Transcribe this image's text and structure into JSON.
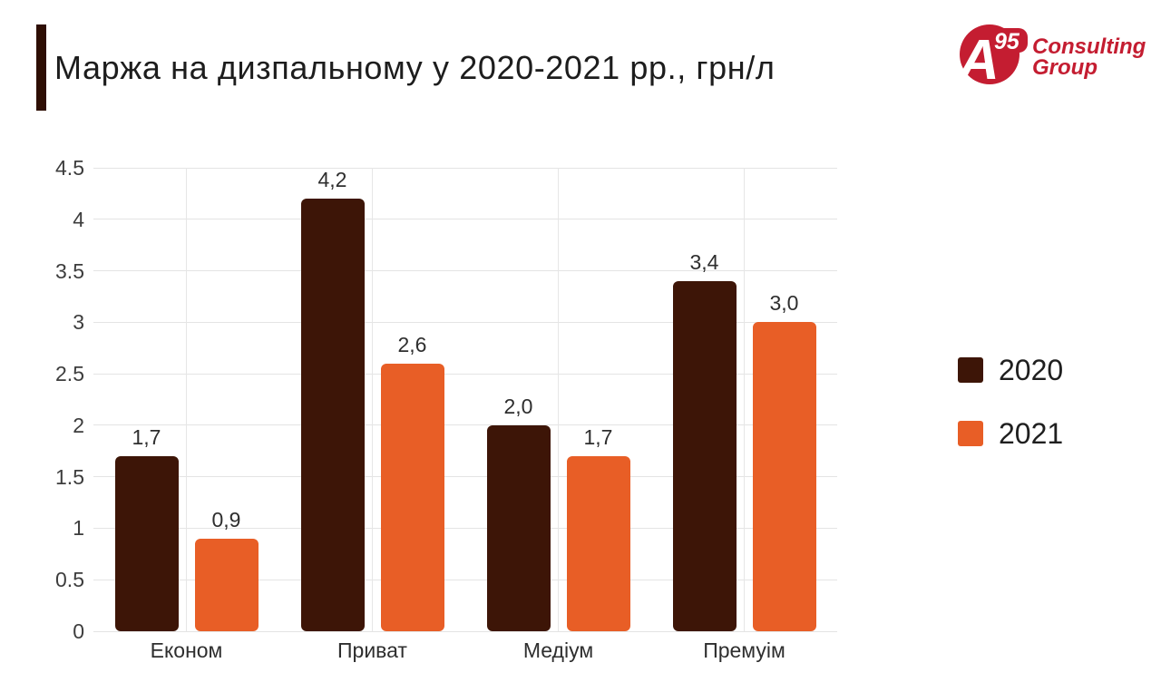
{
  "header": {
    "title": "Маржа на дизпальному у 2020-2021 рр., грн/л",
    "logo": {
      "letter": "A",
      "superscript": "95",
      "line1": "Consulting",
      "line2": "Group",
      "brand_color": "#C41D31"
    }
  },
  "chart_data": {
    "type": "bar",
    "title": "Маржа на дизпальному у 2020-2021 рр., грн/л",
    "categories": [
      "Економ",
      "Приват",
      "Медіум",
      "Премуім"
    ],
    "series": [
      {
        "name": "2020",
        "color": "#3D1507",
        "values": [
          1.7,
          4.2,
          2.0,
          3.4
        ],
        "value_labels": [
          "1,7",
          "4,2",
          "2,0",
          "3,4"
        ]
      },
      {
        "name": "2021",
        "color": "#E85E26",
        "values": [
          0.9,
          2.6,
          1.7,
          3.0
        ],
        "value_labels": [
          "0,9",
          "2,6",
          "1,7",
          "3,0"
        ]
      }
    ],
    "ylim": [
      0,
      4.5
    ],
    "ytick_step": 0.5,
    "yticks": [
      "0",
      "0.5",
      "1",
      "1.5",
      "2",
      "2.5",
      "3",
      "3.5",
      "4",
      "4.5"
    ],
    "grid": true,
    "legend_position": "right",
    "decimal_separator": ","
  }
}
